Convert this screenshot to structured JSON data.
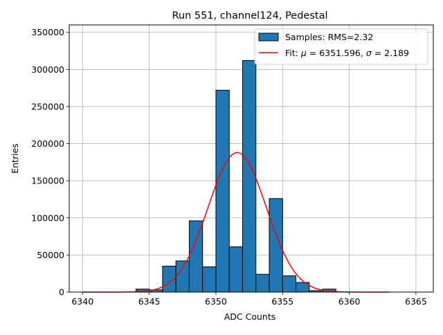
{
  "chart_data": {
    "type": "bar",
    "title": "Run 551, channel124, Pedestal",
    "xlabel": "ADC Counts",
    "ylabel": "Entries",
    "xlim": [
      6339,
      6366.3
    ],
    "ylim": [
      0,
      360000
    ],
    "grid": true,
    "legend_placement": "top-right",
    "xticks": [
      6340,
      6345,
      6350,
      6355,
      6360,
      6365
    ],
    "yticks": [
      0,
      50000,
      100000,
      150000,
      200000,
      250000,
      300000,
      350000
    ],
    "histogram": {
      "name": "Samples: RMS=2.32",
      "color": "#1f77b4",
      "edgecolor": "#000000",
      "bin_width": 1,
      "bins": [
        {
          "x0": 6344,
          "count": 4000
        },
        {
          "x0": 6345,
          "count": 3000
        },
        {
          "x0": 6346,
          "count": 35000
        },
        {
          "x0": 6347,
          "count": 42000
        },
        {
          "x0": 6348,
          "count": 96000
        },
        {
          "x0": 6349,
          "count": 34000
        },
        {
          "x0": 6350,
          "count": 272000
        },
        {
          "x0": 6351,
          "count": 61000
        },
        {
          "x0": 6352,
          "count": 312000
        },
        {
          "x0": 6353,
          "count": 24000
        },
        {
          "x0": 6354,
          "count": 126000
        },
        {
          "x0": 6355,
          "count": 22000
        },
        {
          "x0": 6356,
          "count": 13000
        },
        {
          "x0": 6357,
          "count": 2000
        },
        {
          "x0": 6358,
          "count": 4000
        }
      ]
    },
    "fit": {
      "name": "Fit: μ = 6351.596, σ = 2.189",
      "name_prefix": "Fit: ",
      "mu_symbol": "μ",
      "mu_text": " = 6351.596, ",
      "sigma_symbol": "σ",
      "sigma_text": " = 2.189",
      "color": "#ff0000",
      "mu": 6351.596,
      "sigma": 2.189,
      "amplitude": 188000,
      "x_range": [
        6340,
        6363
      ]
    }
  }
}
